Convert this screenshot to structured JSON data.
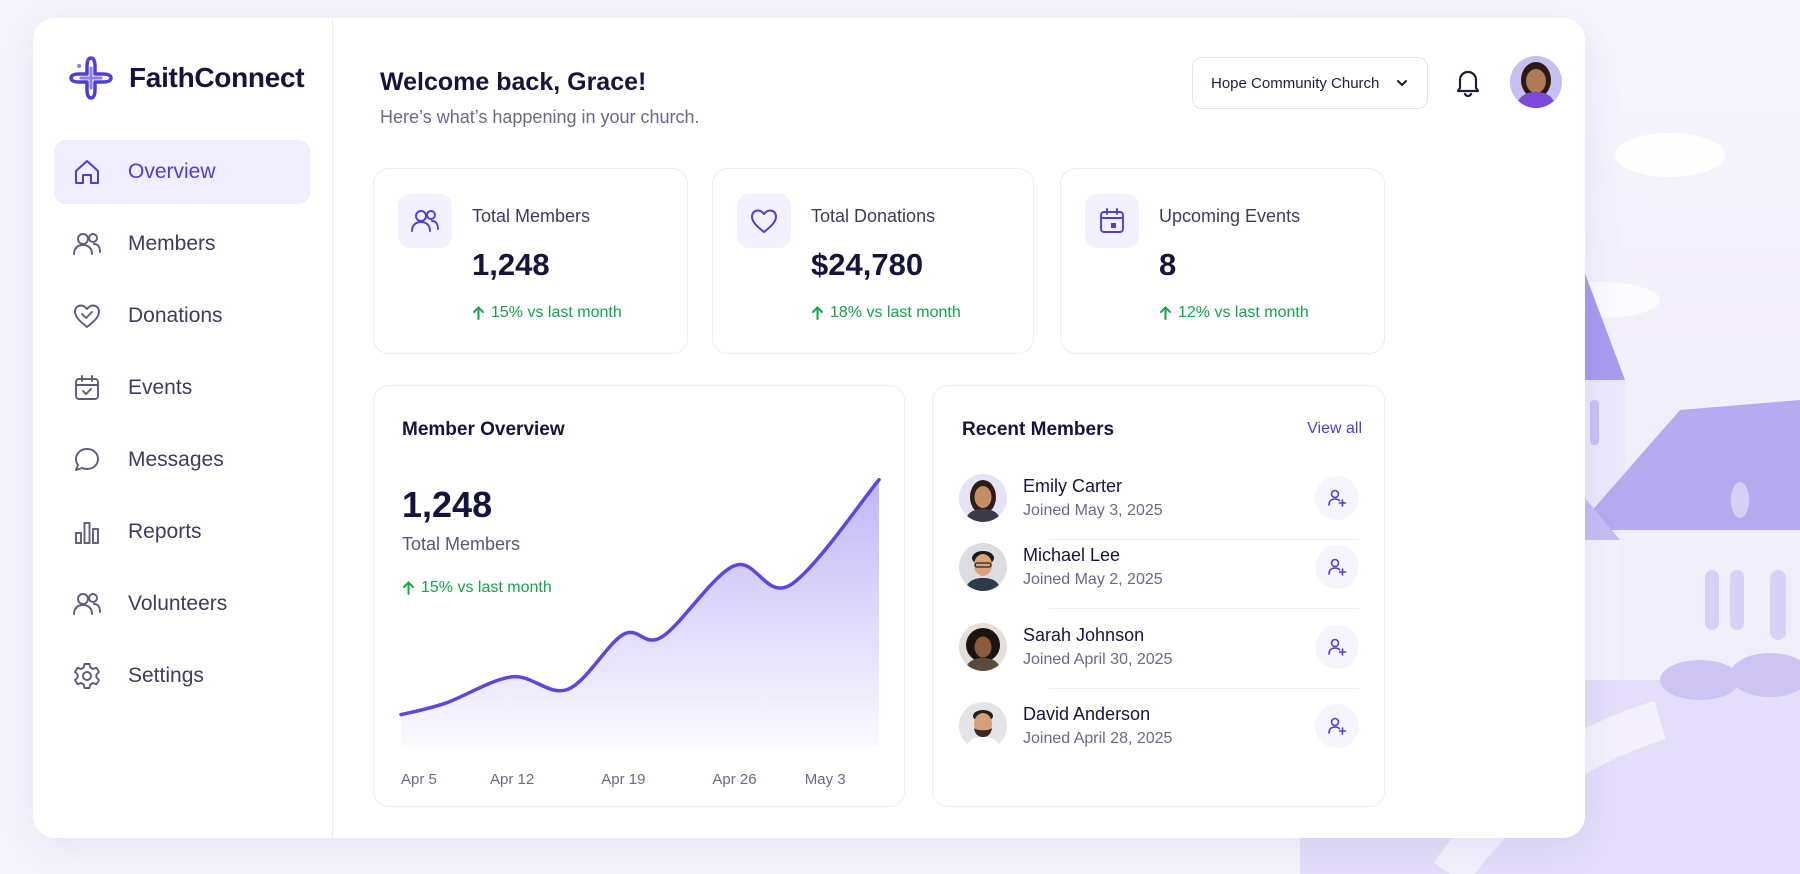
{
  "brand": {
    "name": "FaithConnect",
    "accent": "#4f3ed6"
  },
  "sidebar": {
    "items": [
      {
        "label": "Overview",
        "icon": "home-icon",
        "active": true
      },
      {
        "label": "Members",
        "icon": "users-icon"
      },
      {
        "label": "Donations",
        "icon": "heart-icon"
      },
      {
        "label": "Events",
        "icon": "calendar-icon"
      },
      {
        "label": "Messages",
        "icon": "message-icon"
      },
      {
        "label": "Reports",
        "icon": "bar-chart-icon"
      },
      {
        "label": "Volunteers",
        "icon": "users-icon"
      },
      {
        "label": "Settings",
        "icon": "gear-icon"
      }
    ]
  },
  "header": {
    "title": "Welcome back, Grace!",
    "subtitle": "Here’s what’s happening in your church.",
    "church_selector": "Hope Community Church"
  },
  "stats": [
    {
      "label": "Total Members",
      "value": "1,248",
      "change": "15% vs last month",
      "icon": "users-icon"
    },
    {
      "label": "Total Donations",
      "value": "$24,780",
      "change": "18% vs last month",
      "icon": "heart-icon"
    },
    {
      "label": "Upcoming Events",
      "value": "8",
      "change": "12% vs last month",
      "icon": "calendar-icon"
    }
  ],
  "member_overview": {
    "title": "Member Overview",
    "value": "1,248",
    "label": "Total Members",
    "change": "15% vs last month"
  },
  "chart_data": {
    "type": "area",
    "title": "Member Overview",
    "x_labels": [
      "Apr 5",
      "Apr 12",
      "Apr 19",
      "Apr 26",
      "May 3"
    ],
    "points": [
      [
        0,
        30
      ],
      [
        0.4,
        40
      ],
      [
        1.0,
        63
      ],
      [
        1.5,
        52
      ],
      [
        2.0,
        100
      ],
      [
        2.35,
        98
      ],
      [
        3.0,
        160
      ],
      [
        3.5,
        143
      ],
      [
        4.3,
        235
      ]
    ],
    "xlim": [
      0,
      4.3
    ],
    "ylim": [
      0,
      240
    ],
    "color": "#5b46e0"
  },
  "recent_members": {
    "title": "Recent Members",
    "view_all": "View all",
    "items": [
      {
        "name": "Emily Carter",
        "joined": "Joined May 3, 2025"
      },
      {
        "name": "Michael Lee",
        "joined": "Joined May 2, 2025"
      },
      {
        "name": "Sarah Johnson",
        "joined": "Joined April 30, 2025"
      },
      {
        "name": "David Anderson",
        "joined": "Joined April 28, 2025"
      }
    ]
  }
}
